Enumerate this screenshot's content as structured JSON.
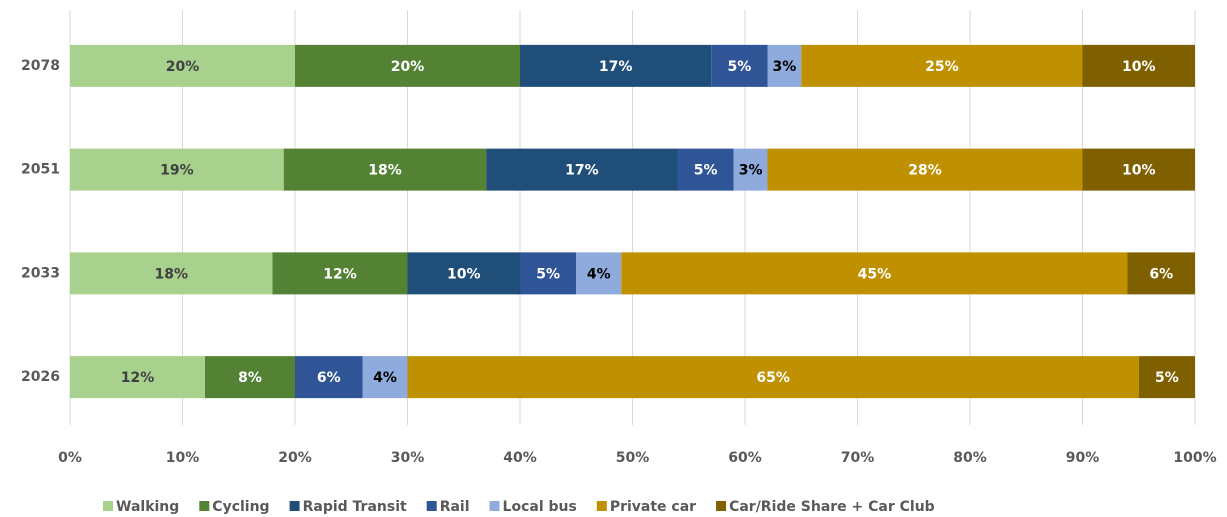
{
  "chart_data": {
    "type": "stacked_barh",
    "categories": [
      "2078",
      "2051",
      "2033",
      "2026"
    ],
    "series": [
      {
        "name": "Walking",
        "color": "#a9d18e",
        "label_color": "#404040",
        "values": [
          20,
          19,
          18,
          12
        ],
        "value_labels": [
          "20%",
          "19%",
          "18%",
          "12%"
        ]
      },
      {
        "name": "Cycling",
        "color": "#548235",
        "label_color": "#ffffff",
        "values": [
          20,
          18,
          12,
          8
        ],
        "value_labels": [
          "20%",
          "18%",
          "12%",
          "8%"
        ]
      },
      {
        "name": "Rapid Transit",
        "color": "#1f4e79",
        "label_color": "#ffffff",
        "values": [
          17,
          17,
          10,
          null
        ],
        "value_labels": [
          "17%",
          "17%",
          "10%",
          null
        ]
      },
      {
        "name": "Rail",
        "color": "#2f5597",
        "label_color": "#ffffff",
        "values": [
          5,
          5,
          5,
          6
        ],
        "value_labels": [
          "5%",
          "5%",
          "5%",
          "6%"
        ]
      },
      {
        "name": "Local bus",
        "color": "#8faadc",
        "label_color": "#000000",
        "values": [
          3,
          3,
          4,
          4
        ],
        "value_labels": [
          "3%",
          "3%",
          "4%",
          "4%"
        ]
      },
      {
        "name": "Private car",
        "color": "#bf9000",
        "label_color": "#ffffff",
        "values": [
          25,
          28,
          45,
          65
        ],
        "value_labels": [
          "25%",
          "28%",
          "45%",
          "65%"
        ]
      },
      {
        "name": "Car/Ride Share + Car Club",
        "color": "#7f6000",
        "label_color": "#ffffff",
        "values": [
          10,
          10,
          6,
          5
        ],
        "value_labels": [
          "10%",
          "10%",
          "6%",
          "5%"
        ]
      }
    ],
    "xlim": [
      0,
      100
    ],
    "xticks": [
      {
        "value": 0,
        "label": "0%"
      },
      {
        "value": 10,
        "label": "10%"
      },
      {
        "value": 20,
        "label": "20%"
      },
      {
        "value": 30,
        "label": "30%"
      },
      {
        "value": 40,
        "label": "40%"
      },
      {
        "value": 50,
        "label": "50%"
      },
      {
        "value": 60,
        "label": "60%"
      },
      {
        "value": 70,
        "label": "70%"
      },
      {
        "value": 80,
        "label": "80%"
      },
      {
        "value": 90,
        "label": "90%"
      },
      {
        "value": 100,
        "label": "100%"
      }
    ],
    "grid": true,
    "legend": "bottom"
  }
}
